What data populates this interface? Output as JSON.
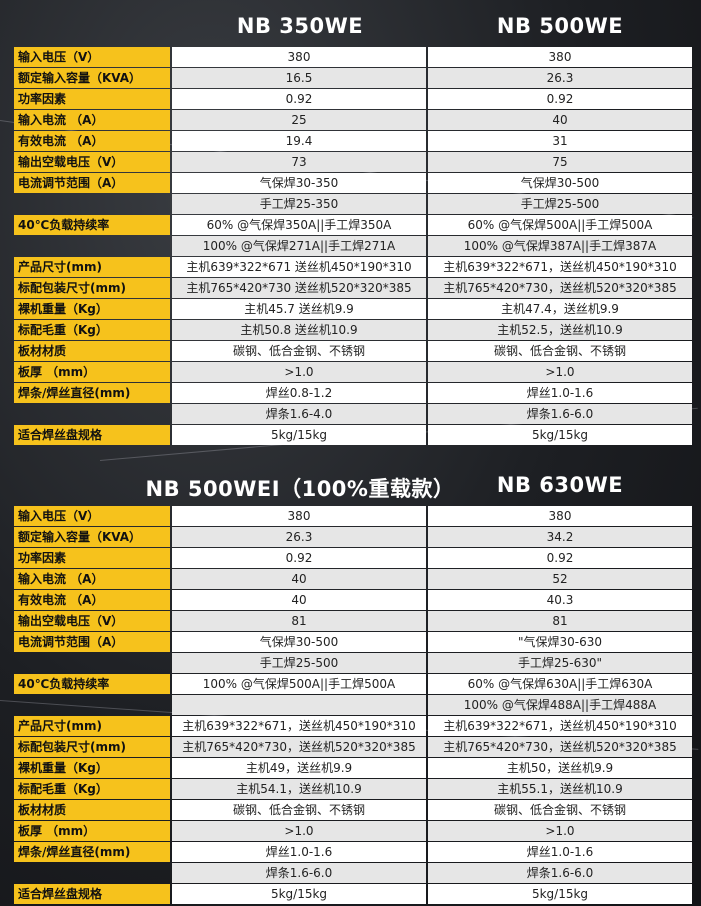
{
  "tables": [
    {
      "headers": [
        "NB 350WE",
        "NB 500WE"
      ],
      "rows": [
        [
          "输入电压（V）",
          "380",
          "380"
        ],
        [
          "额定输入容量（KVA）",
          "16.5",
          "26.3"
        ],
        [
          "功率因素",
          "0.92",
          "0.92"
        ],
        [
          "输入电流 （A）",
          "25",
          "40"
        ],
        [
          "有效电流 （A）",
          "19.4",
          "31"
        ],
        [
          "输出空载电压（V）",
          "73",
          "75"
        ],
        [
          "电流调节范围（A）",
          "气保焊30-350",
          "气保焊30-500"
        ],
        [
          null,
          "手工焊25-350",
          "手工焊25-500"
        ],
        [
          "40℃负载持续率",
          "60% @气保焊350A||手工焊350A",
          "60% @气保焊500A||手工焊500A"
        ],
        [
          null,
          "100% @气保焊271A||手工焊271A",
          "100% @气保焊387A||手工焊387A"
        ],
        [
          "产品尺寸(mm)",
          "主机639*322*671 送丝机450*190*310",
          "主机639*322*671，送丝机450*190*310"
        ],
        [
          "标配包装尺寸(mm)",
          "主机765*420*730 送丝机520*320*385",
          "主机765*420*730，送丝机520*320*385"
        ],
        [
          "裸机重量（Kg）",
          "主机45.7 送丝机9.9",
          "主机47.4，送丝机9.9"
        ],
        [
          "标配毛重（Kg）",
          "主机50.8 送丝机10.9",
          "主机52.5，送丝机10.9"
        ],
        [
          "板材材质",
          "碳钢、低合金钢、不锈钢",
          "碳钢、低合金钢、不锈钢"
        ],
        [
          "板厚 （mm）",
          ">1.0",
          ">1.0"
        ],
        [
          "焊条/焊丝直径(mm)",
          "焊丝0.8-1.2",
          "焊丝1.0-1.6"
        ],
        [
          null,
          "焊条1.6-4.0",
          "焊条1.6-6.0"
        ],
        [
          "适合焊丝盘规格",
          "5kg/15kg",
          "5kg/15kg"
        ]
      ]
    },
    {
      "headers": [
        "NB 500WEI（100%重载款）",
        "NB 630WE"
      ],
      "rows": [
        [
          "输入电压（V）",
          "380",
          "380"
        ],
        [
          "额定输入容量（KVA）",
          "26.3",
          "34.2"
        ],
        [
          "功率因素",
          "0.92",
          "0.92"
        ],
        [
          "输入电流 （A）",
          "40",
          "52"
        ],
        [
          "有效电流 （A）",
          "40",
          "40.3"
        ],
        [
          "输出空载电压（V）",
          "81",
          "81"
        ],
        [
          "电流调节范围（A）",
          "气保焊30-500",
          "\"气保焊30-630"
        ],
        [
          null,
          "手工焊25-500",
          "手工焊25-630\""
        ],
        [
          "40℃负载持续率",
          "100% @气保焊500A||手工焊500A",
          "60% @气保焊630A||手工焊630A"
        ],
        [
          null,
          null,
          "100% @气保焊488A||手工焊488A"
        ],
        [
          "产品尺寸(mm)",
          "主机639*322*671，送丝机450*190*310",
          "主机639*322*671，送丝机450*190*310"
        ],
        [
          "标配包装尺寸(mm)",
          "主机765*420*730，送丝机520*320*385",
          "主机765*420*730，送丝机520*320*385"
        ],
        [
          "裸机重量（Kg）",
          "主机49，送丝机9.9",
          "主机50，送丝机9.9"
        ],
        [
          "标配毛重（Kg）",
          "主机54.1，送丝机10.9",
          "主机55.1，送丝机10.9"
        ],
        [
          "板材材质",
          "碳钢、低合金钢、不锈钢",
          "碳钢、低合金钢、不锈钢"
        ],
        [
          "板厚 （mm）",
          ">1.0",
          ">1.0"
        ],
        [
          "焊条/焊丝直径(mm)",
          "焊丝1.0-1.6",
          "焊丝1.0-1.6"
        ],
        [
          null,
          "焊条1.6-6.0",
          "焊条1.6-6.0"
        ],
        [
          "适合焊丝盘规格",
          "5kg/15kg",
          "5kg/15kg"
        ]
      ]
    }
  ]
}
